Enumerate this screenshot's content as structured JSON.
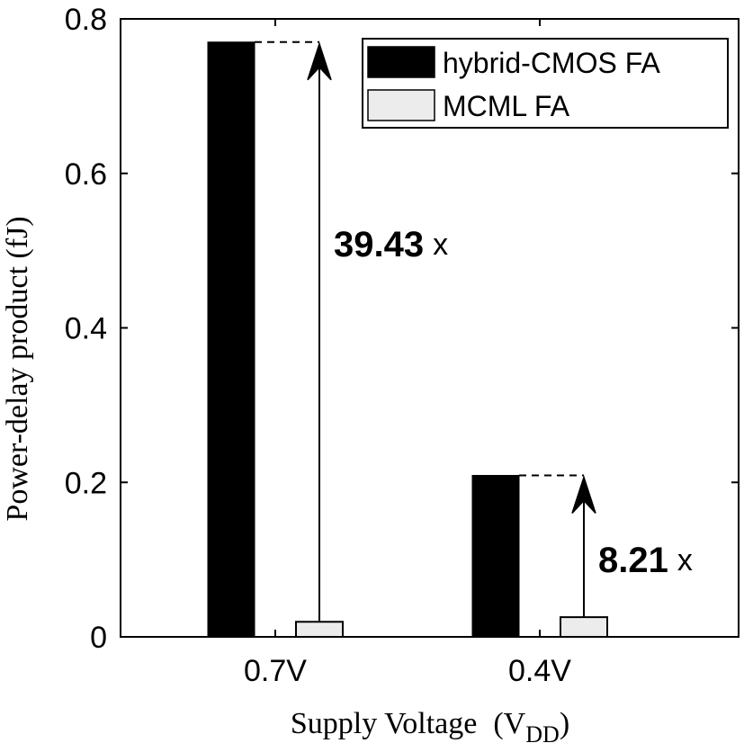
{
  "chart_data": {
    "type": "bar",
    "categories": [
      "0.7V",
      "0.4V"
    ],
    "series": [
      {
        "name": "hybrid-CMOS FA",
        "values": [
          0.77,
          0.209
        ],
        "color": "#000000"
      },
      {
        "name": "MCML FA",
        "values": [
          0.0195,
          0.0255
        ],
        "color": "#ececec"
      }
    ],
    "xlabel": "Supply Voltage",
    "xlabel_paren": "(V",
    "xlabel_sub": "DD",
    "xlabel_close": ")",
    "ylabel": "Power-delay product  (fJ)",
    "ylim": [
      0,
      0.8
    ],
    "yticks": [
      0,
      0.2,
      0.4,
      0.6,
      0.8
    ],
    "ytick_labels": [
      "0",
      "0.2",
      "0.4",
      "0.6",
      "0.8"
    ],
    "legend_position": "top-right",
    "grid": false,
    "annotations": [
      {
        "category": "0.7V",
        "value": "39.43",
        "suffix": "x"
      },
      {
        "category": "0.4V",
        "value": "8.21",
        "suffix": "x"
      }
    ]
  }
}
